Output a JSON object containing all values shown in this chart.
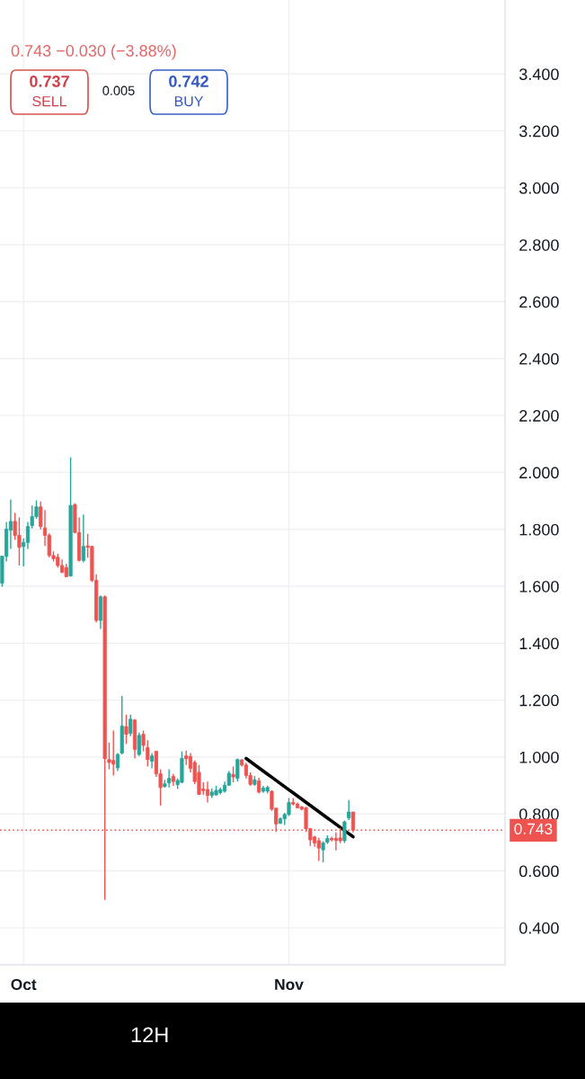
{
  "chart_data": {
    "type": "candlestick",
    "categories": [
      null,
      null,
      null,
      null,
      null,
      "Oct",
      null,
      null,
      null,
      null,
      null,
      null,
      null,
      null,
      null,
      null,
      null,
      null,
      null,
      null,
      null,
      null,
      null,
      null,
      null,
      null,
      null,
      null,
      null,
      null,
      null,
      null,
      null,
      null,
      null,
      null,
      null,
      null,
      null,
      null,
      null,
      null,
      null,
      null,
      null,
      null,
      null,
      null,
      null,
      null,
      null,
      null,
      null,
      null,
      null,
      null,
      null,
      null,
      null,
      null,
      null,
      null,
      null,
      null,
      null,
      null,
      null,
      "Nov",
      null,
      null,
      null,
      null,
      null,
      null,
      null,
      null,
      null,
      null,
      null,
      null,
      null,
      null,
      null,
      null,
      null,
      null,
      null,
      null,
      null,
      null,
      null,
      null,
      null,
      null,
      null,
      null,
      null,
      null,
      null,
      null,
      null,
      null,
      null,
      null,
      null,
      null,
      null,
      null,
      null,
      null,
      null,
      null,
      null,
      null,
      null,
      null,
      null,
      null
    ],
    "ohlc": [
      [
        1.611,
        1.706,
        1.598,
        1.706
      ],
      [
        1.705,
        1.826,
        1.687,
        1.801
      ],
      [
        1.797,
        1.905,
        1.731,
        1.828
      ],
      [
        1.828,
        1.858,
        1.763,
        1.779
      ],
      [
        1.779,
        1.842,
        1.673,
        1.737
      ],
      [
        1.74,
        1.768,
        1.67,
        1.754
      ],
      [
        1.754,
        1.826,
        1.731,
        1.81
      ],
      [
        1.813,
        1.884,
        1.803,
        1.845
      ],
      [
        1.845,
        1.902,
        1.837,
        1.879
      ],
      [
        1.879,
        1.898,
        1.8,
        1.81
      ],
      [
        1.805,
        1.868,
        1.742,
        1.779
      ],
      [
        1.779,
        1.786,
        1.702,
        1.708
      ],
      [
        1.708,
        1.723,
        1.687,
        1.697
      ],
      [
        1.702,
        1.715,
        1.666,
        1.673
      ],
      [
        1.673,
        1.694,
        1.647,
        1.649
      ],
      [
        1.666,
        1.679,
        1.632,
        1.634
      ],
      [
        1.636,
        2.053,
        1.634,
        1.884
      ],
      [
        1.887,
        1.892,
        1.786,
        1.789
      ],
      [
        1.789,
        1.842,
        1.687,
        1.691
      ],
      [
        1.691,
        1.852,
        1.684,
        1.74
      ],
      [
        1.742,
        1.784,
        1.7,
        1.737
      ],
      [
        1.74,
        1.742,
        1.615,
        1.621
      ],
      [
        1.621,
        1.642,
        1.473,
        1.48
      ],
      [
        1.48,
        1.568,
        1.45,
        1.563
      ],
      [
        1.563,
        1.568,
        0.498,
        0.994
      ],
      [
        0.991,
        1.051,
        0.957,
        0.981
      ],
      [
        0.988,
        1.093,
        0.935,
        0.975
      ],
      [
        0.962,
        1.014,
        0.951,
        1.009
      ],
      [
        1.014,
        1.215,
        1.009,
        1.109
      ],
      [
        1.107,
        1.149,
        1.046,
        1.08
      ],
      [
        1.083,
        1.149,
        1.073,
        1.133
      ],
      [
        1.13,
        1.133,
        0.995,
        1.027
      ],
      [
        1.009,
        1.086,
        1.004,
        1.076
      ],
      [
        1.08,
        1.093,
        1.02,
        1.041
      ],
      [
        1.033,
        1.059,
        0.967,
        0.991
      ],
      [
        0.985,
        1.014,
        0.96,
        1.004
      ],
      [
        1.02,
        1.02,
        0.93,
        0.941
      ],
      [
        0.941,
        0.957,
        0.83,
        0.893
      ],
      [
        0.896,
        0.92,
        0.893,
        0.906
      ],
      [
        0.909,
        0.957,
        0.893,
        0.925
      ],
      [
        0.932,
        0.941,
        0.899,
        0.914
      ],
      [
        0.903,
        0.925,
        0.888,
        0.918
      ],
      [
        0.911,
        1.02,
        0.909,
        0.995
      ],
      [
        1.004,
        1.023,
        0.972,
        0.994
      ],
      [
        1.002,
        1.014,
        0.946,
        0.96
      ],
      [
        0.981,
        0.988,
        0.904,
        0.914
      ],
      [
        0.946,
        0.972,
        0.867,
        0.869
      ],
      [
        0.888,
        0.911,
        0.867,
        0.882
      ],
      [
        0.886,
        0.914,
        0.84,
        0.865
      ],
      [
        0.865,
        0.89,
        0.856,
        0.877
      ],
      [
        0.867,
        0.899,
        0.865,
        0.883
      ],
      [
        0.875,
        0.893,
        0.869,
        0.886
      ],
      [
        0.88,
        0.914,
        0.875,
        0.901
      ],
      [
        0.901,
        0.951,
        0.899,
        0.943
      ],
      [
        0.939,
        0.967,
        0.911,
        0.93
      ],
      [
        0.925,
        0.995,
        0.914,
        0.991
      ],
      [
        0.99,
        0.993,
        0.967,
        0.972
      ],
      [
        0.972,
        0.98,
        0.925,
        0.935
      ],
      [
        0.935,
        0.946,
        0.899,
        0.904
      ],
      [
        0.904,
        0.933,
        0.899,
        0.92
      ],
      [
        0.916,
        0.927,
        0.872,
        0.877
      ],
      [
        0.88,
        0.899,
        0.874,
        0.891
      ],
      [
        0.88,
        0.899,
        0.872,
        0.893
      ],
      [
        0.88,
        0.882,
        0.811,
        0.817
      ],
      [
        0.82,
        0.822,
        0.737,
        0.765
      ],
      [
        0.767,
        0.788,
        0.765,
        0.783
      ],
      [
        0.783,
        0.804,
        0.761,
        0.798
      ],
      [
        0.798,
        0.856,
        0.793,
        0.84
      ],
      [
        0.84,
        0.856,
        0.83,
        0.835
      ],
      [
        0.835,
        0.84,
        0.82,
        0.822
      ],
      [
        0.825,
        0.828,
        0.813,
        0.817
      ],
      [
        0.822,
        0.825,
        0.737,
        0.748
      ],
      [
        0.748,
        0.751,
        0.688,
        0.709
      ],
      [
        0.719,
        0.723,
        0.685,
        0.698
      ],
      [
        0.706,
        0.716,
        0.635,
        0.68
      ],
      [
        0.674,
        0.704,
        0.63,
        0.698
      ],
      [
        0.701,
        0.725,
        0.695,
        0.714
      ],
      [
        0.714,
        0.72,
        0.704,
        0.709
      ],
      [
        0.714,
        0.735,
        0.672,
        0.707
      ],
      [
        0.716,
        0.751,
        0.698,
        0.706
      ],
      [
        0.706,
        0.777,
        0.698,
        0.772
      ],
      [
        0.786,
        0.849,
        0.779,
        0.807
      ],
      [
        0.807,
        0.807,
        0.735,
        0.743
      ],
      null,
      null,
      null,
      null,
      null,
      null,
      null,
      null,
      null,
      null,
      null,
      null,
      null,
      null,
      null,
      null,
      null,
      null,
      null,
      null,
      null,
      null,
      null,
      null,
      null,
      null,
      null,
      null,
      null,
      null,
      null,
      null,
      null,
      null,
      null
    ],
    "colors": [
      "#26a69a",
      "#26a69a",
      "#26a69a",
      "#ef5350",
      "#ef5350",
      "#26a69a",
      "#26a69a",
      "#26a69a",
      "#26a69a",
      "#ef5350",
      "#ef5350",
      "#ef5350",
      "#ef5350",
      "#ef5350",
      "#ef5350",
      "#ef5350",
      "#26a69a",
      "#ef5350",
      "#ef5350",
      "#26a69a",
      "#ef5350",
      "#ef5350",
      "#ef5350",
      "#26a69a",
      "#ef5350",
      "#ef5350",
      "#ef5350",
      "#26a69a",
      "#26a69a",
      "#ef5350",
      "#26a69a",
      "#ef5350",
      "#26a69a",
      "#ef5350",
      "#ef5350",
      "#26a69a",
      "#ef5350",
      "#ef5350",
      "#26a69a",
      "#26a69a",
      "#ef5350",
      "#26a69a",
      "#26a69a",
      "#ef5350",
      "#ef5350",
      "#ef5350",
      "#ef5350",
      "#ef5350",
      "#ef5350",
      "#26a69a",
      "#26a69a",
      "#26a69a",
      "#26a69a",
      "#26a69a",
      "#ef5350",
      "#26a69a",
      "#ef5350",
      "#ef5350",
      "#ef5350",
      "#26a69a",
      "#ef5350",
      "#26a69a",
      "#26a69a",
      "#ef5350",
      "#ef5350",
      "#26a69a",
      "#26a69a",
      "#26a69a",
      "#ef5350",
      "#ef5350",
      "#ef5350",
      "#ef5350",
      "#ef5350",
      "#ef5350",
      "#ef5350",
      "#26a69a",
      "#26a69a",
      "#ef5350",
      "#ef5350",
      "#ef5350",
      "#26a69a",
      "#26a69a",
      "#ef5350",
      null,
      null,
      null,
      null,
      null,
      null,
      null,
      null,
      null,
      null,
      null,
      null,
      null,
      null,
      null,
      null,
      null,
      null,
      null,
      null,
      null,
      null,
      null,
      null,
      null,
      null,
      null,
      null,
      null,
      null,
      null,
      null,
      null,
      null,
      null
    ],
    "series": [
      {
        "type": "line",
        "color": "#000000",
        "values": [
          null,
          null,
          null,
          null,
          null,
          null,
          null,
          null,
          null,
          null,
          null,
          null,
          null,
          null,
          null,
          null,
          null,
          null,
          null,
          null,
          null,
          null,
          null,
          null,
          null,
          null,
          null,
          null,
          null,
          null,
          null,
          null,
          null,
          null,
          null,
          null,
          null,
          null,
          null,
          null,
          null,
          null,
          null,
          null,
          null,
          null,
          null,
          null,
          null,
          null,
          null,
          null,
          null,
          null,
          null,
          null,
          null,
          0.995,
          0.984,
          0.973,
          0.962,
          0.951,
          0.94,
          0.929,
          0.918,
          0.907,
          0.896,
          0.885,
          0.874,
          0.863,
          0.852,
          0.841,
          0.83,
          0.819,
          0.808,
          0.797,
          0.786,
          0.775,
          0.764,
          0.753,
          0.742,
          0.731,
          0.72,
          null,
          null,
          null,
          null,
          null,
          null,
          null,
          null,
          null,
          null,
          null,
          null,
          null,
          null,
          null,
          null,
          null,
          null,
          null,
          null,
          null,
          null,
          null,
          null,
          null,
          null,
          null,
          null,
          null,
          null,
          null,
          null,
          null,
          null,
          null
        ]
      }
    ],
    "ref_lines": [
      {
        "axis": "y",
        "value": 0.743,
        "label": "0.743",
        "color": "#ef5350",
        "line_style": "dotted"
      }
    ],
    "ylim": [
      0.27,
      3.66
    ],
    "yticks": [
      {
        "value": 0.4,
        "label": "0.400"
      },
      {
        "value": 0.6,
        "label": "0.600"
      },
      {
        "value": 0.8,
        "label": "0.800"
      },
      {
        "value": 1.0,
        "label": "1.000"
      },
      {
        "value": 1.2,
        "label": "1.200"
      },
      {
        "value": 1.4,
        "label": "1.400"
      },
      {
        "value": 1.6,
        "label": "1.600"
      },
      {
        "value": 1.8,
        "label": "1.800"
      },
      {
        "value": 2.0,
        "label": "2.000"
      },
      {
        "value": 2.2,
        "label": "2.200"
      },
      {
        "value": 2.4,
        "label": "2.400"
      },
      {
        "value": 2.6,
        "label": "2.600"
      },
      {
        "value": 2.8,
        "label": "2.800"
      },
      {
        "value": 3.0,
        "label": "3.000"
      },
      {
        "value": 3.2,
        "label": "3.200"
      },
      {
        "value": 3.4,
        "label": "3.400"
      }
    ],
    "grid": true,
    "annotations": [
      "0.743 −0.030 (−3.88%)",
      "0.737",
      "SELL",
      "0.005",
      "0.742",
      "BUY",
      "12H"
    ]
  }
}
